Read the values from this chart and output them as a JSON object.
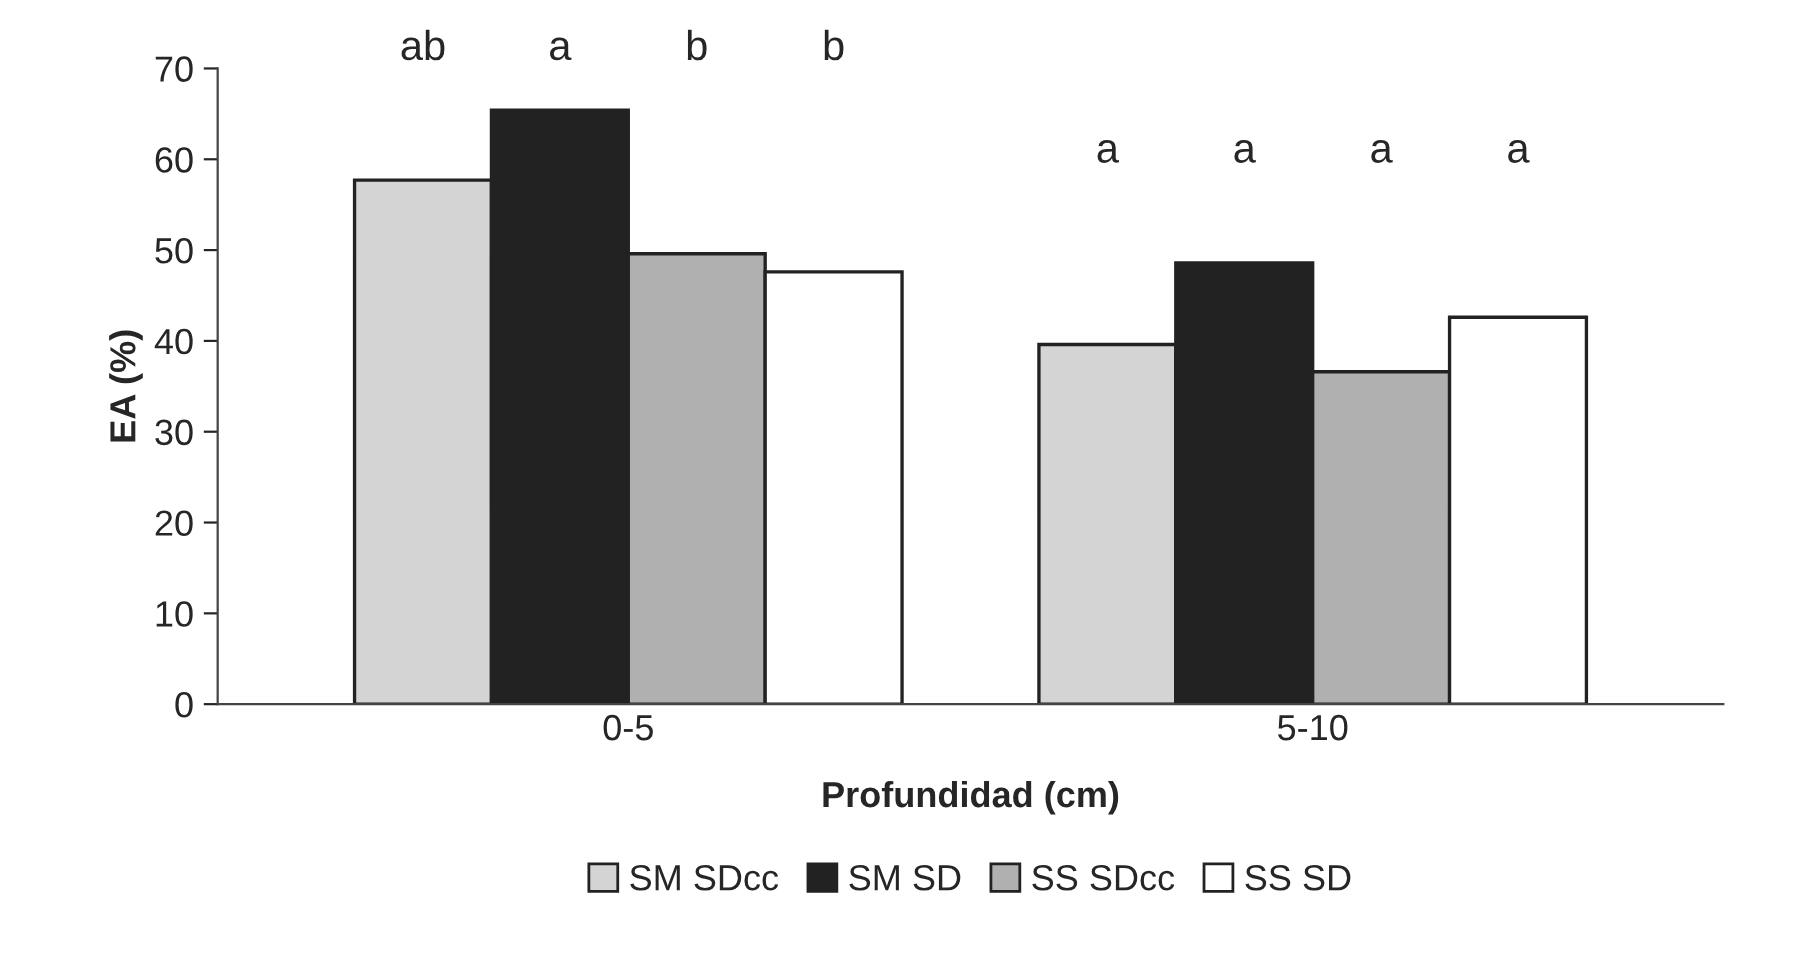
{
  "chart_data": {
    "type": "bar",
    "xlabel": "Profundidad (cm)",
    "ylabel": "EA (%)",
    "categories": [
      "0-5",
      "5-10"
    ],
    "series": [
      {
        "name": "SM SDcc",
        "color": "#d4d4d4",
        "values": [
          57.7,
          39.6
        ]
      },
      {
        "name": "SM SD",
        "color": "#222222",
        "values": [
          65.4,
          48.6
        ]
      },
      {
        "name": "SS SDcc",
        "color": "#b0b0b0",
        "values": [
          49.6,
          36.6
        ]
      },
      {
        "name": "SS SD",
        "color": "#ffffff",
        "values": [
          47.6,
          42.6
        ]
      }
    ],
    "ylim": [
      0,
      70
    ],
    "yticks": [
      0,
      10,
      20,
      30,
      40,
      50,
      60,
      70
    ],
    "grid": false,
    "legend": "bottom",
    "annotations": [
      "ab",
      "a",
      "b",
      "b",
      "a",
      "a",
      "a",
      "a"
    ]
  }
}
